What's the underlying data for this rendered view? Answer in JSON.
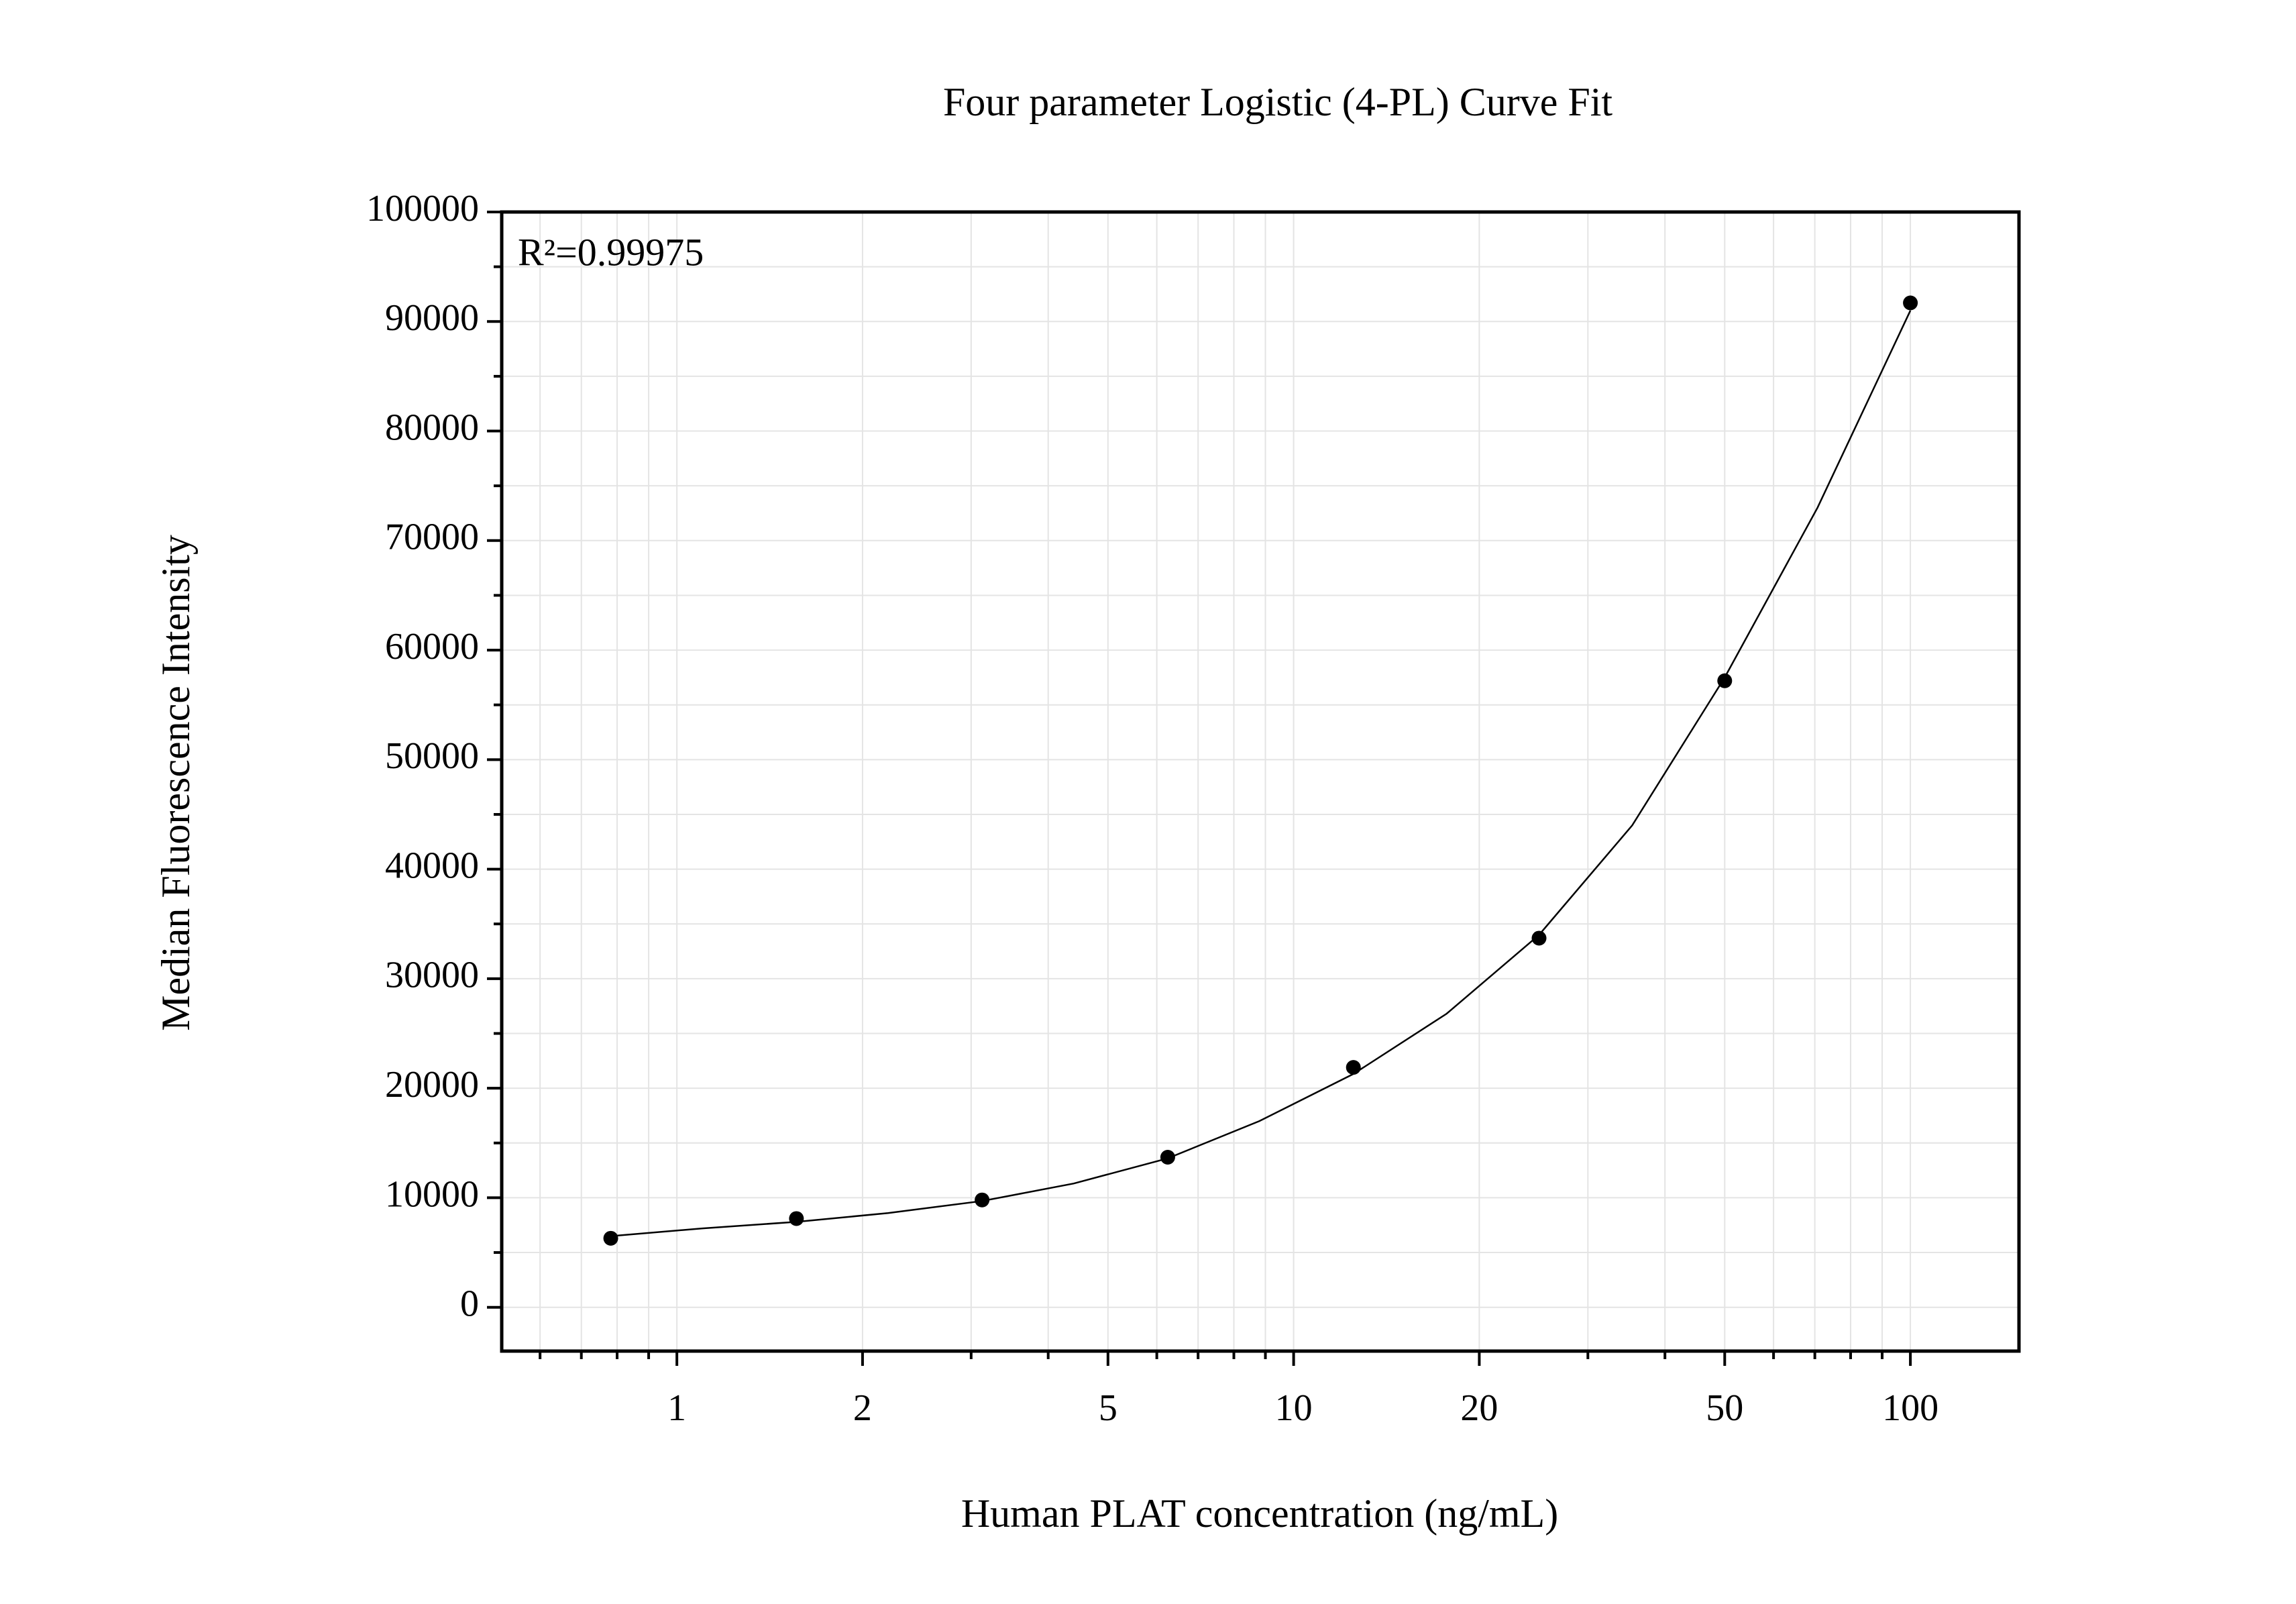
{
  "chart_data": {
    "type": "scatter",
    "title": "Four parameter Logistic (4-PL) Curve Fit",
    "x_label": "Human PLAT concentration (ng/mL)",
    "y_label": "Median Fluorescence Intensity",
    "annotation": "R²=0.99975",
    "xscale": "log",
    "xlim": [
      0.52,
      150
    ],
    "ylim": [
      -4000,
      100000
    ],
    "xticks": [
      1,
      2,
      5,
      10,
      20,
      50,
      100
    ],
    "xminor": [
      0.6,
      0.7,
      0.8,
      0.9,
      3,
      4,
      6,
      7,
      8,
      9,
      30,
      40,
      60,
      70,
      80,
      90
    ],
    "yticks": [
      0,
      10000,
      20000,
      30000,
      40000,
      50000,
      60000,
      70000,
      80000,
      90000,
      100000
    ],
    "yminor": [
      5000,
      15000,
      25000,
      35000,
      45000,
      55000,
      65000,
      75000,
      85000,
      95000
    ],
    "grid": true,
    "series": [
      {
        "type": "scatter",
        "color": "#000000",
        "x": [
          0.78125,
          1.5625,
          3.125,
          6.25,
          12.5,
          25,
          50,
          100
        ],
        "values": [
          6300,
          8100,
          9800,
          13700,
          21900,
          33700,
          57200,
          91700
        ]
      },
      {
        "type": "line",
        "color": "#000000",
        "x": [
          0.78125,
          1.1,
          1.5625,
          2.2,
          3.125,
          4.4,
          6.25,
          8.8,
          12.5,
          17.7,
          25,
          35.4,
          50,
          70.7,
          100
        ],
        "values": [
          6500,
          7200,
          7800,
          8600,
          9700,
          11300,
          13600,
          17000,
          21300,
          26800,
          34000,
          44000,
          57500,
          73000,
          91000
        ]
      }
    ]
  }
}
